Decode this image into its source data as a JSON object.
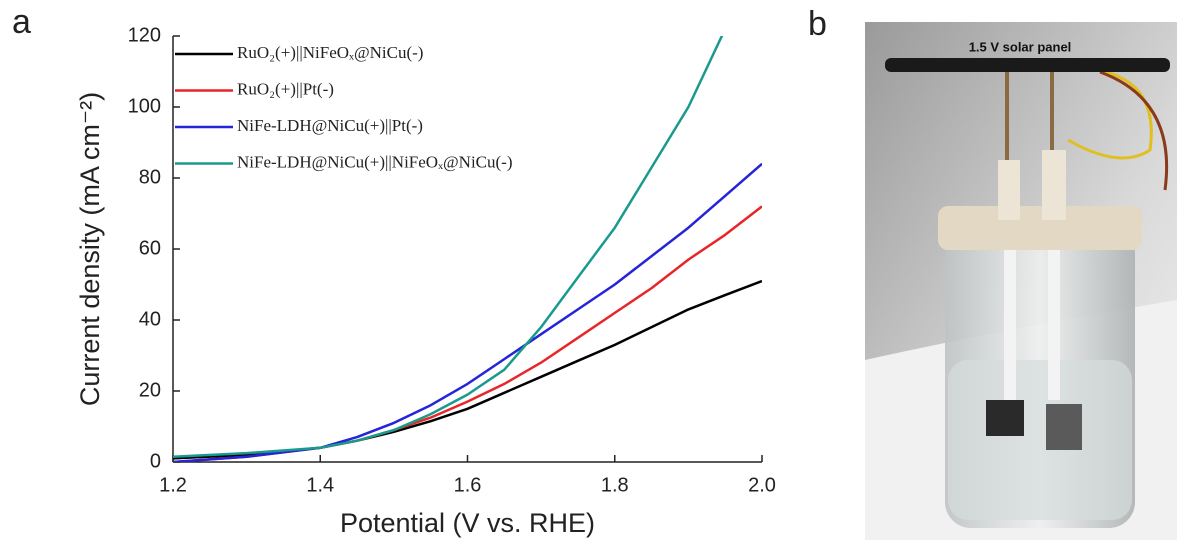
{
  "chart_data": {
    "type": "line",
    "panel_label": "a",
    "xlabel": "Potential (V vs. RHE)",
    "ylabel": "Current density (mA cm⁻²)",
    "x": [
      1.2,
      1.3,
      1.4,
      1.45,
      1.5,
      1.55,
      1.6,
      1.65,
      1.7,
      1.75,
      1.8,
      1.85,
      1.9,
      1.95,
      2.0
    ],
    "series": [
      {
        "name": "RuO₂(+)||NiFeOₓ@NiCu(-)",
        "color": "#000000",
        "values": [
          1,
          2,
          4,
          6,
          8.5,
          11.5,
          15,
          19.5,
          24,
          28.5,
          33,
          38,
          43,
          47,
          51
        ]
      },
      {
        "name": "RuO₂(+)||Pt(-)",
        "color": "#e8262a",
        "values": [
          0,
          1.5,
          4,
          6,
          9,
          12.5,
          17,
          22,
          28,
          35,
          42,
          49,
          57,
          64,
          72
        ]
      },
      {
        "name": "NiFe-LDH@NiCu(+)||Pt(-)",
        "color": "#2424d8",
        "values": [
          0,
          1.5,
          4,
          7,
          11,
          16,
          22,
          29,
          36,
          43,
          50,
          58,
          66,
          75,
          84
        ]
      },
      {
        "name": "NiFe-LDH@NiCu(+)||NiFeOₓ@NiCu(-)",
        "color": "#1a9a8e",
        "values": [
          1.5,
          2.5,
          4,
          6,
          9,
          13.5,
          19,
          26,
          38,
          52,
          66,
          83,
          100,
          122,
          null
        ]
      }
    ],
    "xlim": [
      1.2,
      2.0
    ],
    "ylim": [
      0,
      120
    ],
    "xticks": [
      1.2,
      1.4,
      1.6,
      1.8,
      {
        "value": 2,
        "label": "2.0"
      }
    ],
    "yticks": [
      0,
      20,
      40,
      60,
      80,
      100,
      120
    ],
    "legend": "upper left"
  },
  "photo": {
    "panel_label": "b",
    "caption": "1.5 V solar panel"
  }
}
